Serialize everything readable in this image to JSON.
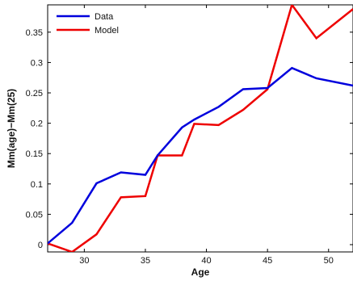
{
  "chart_data": {
    "type": "line",
    "title": "",
    "xlabel": "Age",
    "ylabel": "Mm(age)−Mm(25)",
    "xlim": [
      27,
      52
    ],
    "ylim": [
      -0.012,
      0.395
    ],
    "x_ticks": [
      30,
      35,
      40,
      45,
      50
    ],
    "y_ticks": [
      0,
      0.05,
      0.1,
      0.15,
      0.2,
      0.25,
      0.3,
      0.35
    ],
    "x_tick_labels": [
      "30",
      "35",
      "40",
      "45",
      "50"
    ],
    "y_tick_labels": [
      "0",
      "0.05",
      "0.1",
      "0.15",
      "0.2",
      "0.25",
      "0.3",
      "0.35"
    ],
    "grid": false,
    "legend_position": "top-left",
    "series": [
      {
        "name": "Data",
        "color": "#0000dd",
        "points": [
          [
            27,
            0.002
          ],
          [
            29,
            0.036
          ],
          [
            31,
            0.101
          ],
          [
            33,
            0.119
          ],
          [
            35,
            0.115
          ],
          [
            36,
            0.147
          ],
          [
            38,
            0.193
          ],
          [
            39,
            0.206
          ],
          [
            41,
            0.227
          ],
          [
            43,
            0.256
          ],
          [
            45,
            0.258
          ],
          [
            47,
            0.291
          ],
          [
            49,
            0.274
          ],
          [
            52,
            0.262
          ]
        ]
      },
      {
        "name": "Model",
        "color": "#ee0000",
        "points": [
          [
            27,
            0.002
          ],
          [
            29,
            -0.012
          ],
          [
            31,
            0.017
          ],
          [
            33,
            0.078
          ],
          [
            35,
            0.08
          ],
          [
            36,
            0.147
          ],
          [
            38,
            0.147
          ],
          [
            39,
            0.199
          ],
          [
            41,
            0.197
          ],
          [
            43,
            0.222
          ],
          [
            45,
            0.256
          ],
          [
            47,
            0.395
          ],
          [
            49,
            0.34
          ],
          [
            52,
            0.388
          ]
        ]
      }
    ]
  }
}
